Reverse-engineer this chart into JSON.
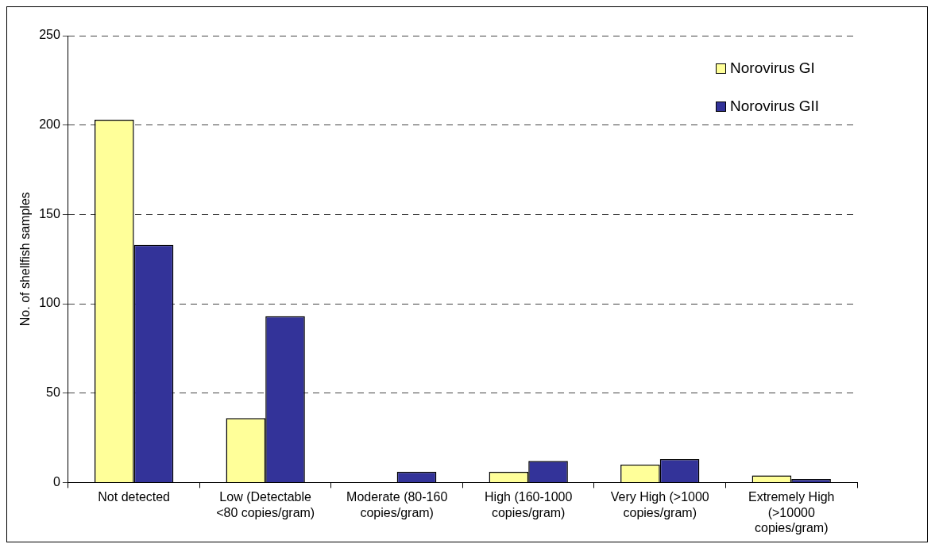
{
  "chart_data": {
    "type": "bar",
    "ylabel": "No. of shellfish samples",
    "categories": [
      "Not detected",
      "Low (Detectable <80 copies/gram)",
      "Moderate (80-160 copies/gram)",
      "High (160-1000 copies/gram)",
      "Very High (>1000 copies/gram)",
      "Extremely High (>10000 copies/gram)"
    ],
    "series": [
      {
        "name": "Norovirus GI",
        "color": "#ffff99",
        "values": [
          203,
          36,
          0,
          6,
          10,
          4
        ]
      },
      {
        "name": "Norovirus GII",
        "color": "#333399",
        "values": [
          133,
          93,
          6,
          12,
          13,
          2
        ]
      }
    ],
    "ylim": [
      0,
      250
    ],
    "yticks": [
      0,
      50,
      100,
      150,
      200,
      250
    ],
    "grid": "y",
    "legend": "top right"
  }
}
